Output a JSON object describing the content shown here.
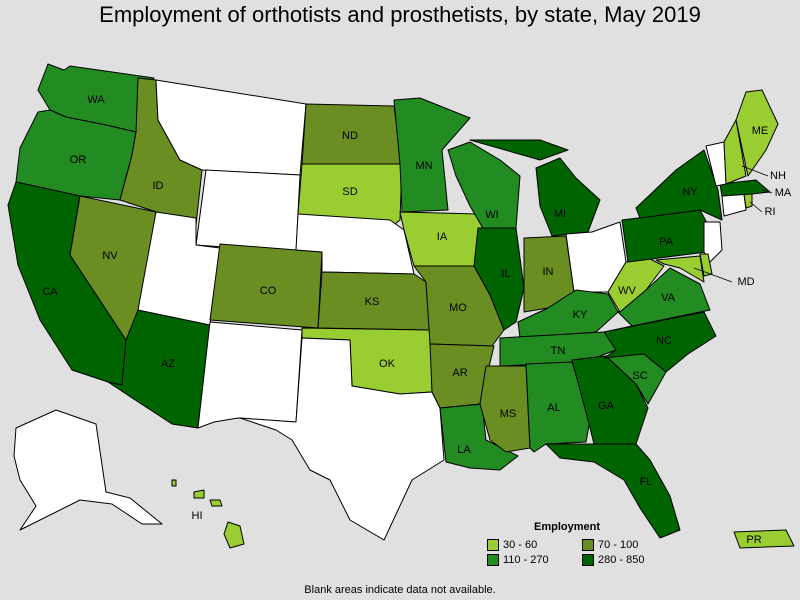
{
  "title": "Employment of orthotists and prosthetists, by state, May 2019",
  "legend": {
    "title": "Employment",
    "items": [
      {
        "label": "30 - 60",
        "color": "#9acd32"
      },
      {
        "label": "70 - 100",
        "color": "#6b8e23"
      },
      {
        "label": "110 - 270",
        "color": "#228b22"
      },
      {
        "label": "280 - 850",
        "color": "#006400"
      }
    ]
  },
  "footnote": "Blank areas indicate data not available.",
  "colors": {
    "none": "#ffffff",
    "c1": "#9acd32",
    "c2": "#6b8e23",
    "c3": "#228b22",
    "c4": "#006400"
  },
  "chart_data": {
    "type": "map",
    "bins": [
      "30 - 60",
      "70 - 100",
      "110 - 270",
      "280 - 850"
    ],
    "states": {
      "WA": "110 - 270",
      "OR": "110 - 270",
      "CA": "280 - 850",
      "ID": "70 - 100",
      "NV": "70 - 100",
      "AZ": "280 - 850",
      "MT": null,
      "WY": null,
      "UT": null,
      "CO": "70 - 100",
      "NM": null,
      "ND": "70 - 100",
      "SD": "30 - 60",
      "NE": null,
      "KS": "70 - 100",
      "OK": "30 - 60",
      "TX": null,
      "MN": "110 - 270",
      "IA": "30 - 60",
      "MO": "70 - 100",
      "AR": "70 - 100",
      "LA": "110 - 270",
      "WI": "110 - 270",
      "IL": "280 - 850",
      "MI": "280 - 850",
      "IN": "70 - 100",
      "OH": null,
      "KY": "110 - 270",
      "TN": "110 - 270",
      "MS": "70 - 100",
      "AL": "110 - 270",
      "GA": "280 - 850",
      "FL": "280 - 850",
      "SC": "110 - 270",
      "NC": "280 - 850",
      "VA": "110 - 270",
      "WV": "30 - 60",
      "MD": "30 - 60",
      "DE": "30 - 60",
      "NJ": null,
      "PA": "280 - 850",
      "NY": "280 - 850",
      "CT": null,
      "RI": "30 - 60",
      "MA": "280 - 850",
      "VT": null,
      "NH": "30 - 60",
      "ME": "30 - 60",
      "AK": null,
      "HI": "30 - 60",
      "PR": "30 - 60"
    }
  }
}
